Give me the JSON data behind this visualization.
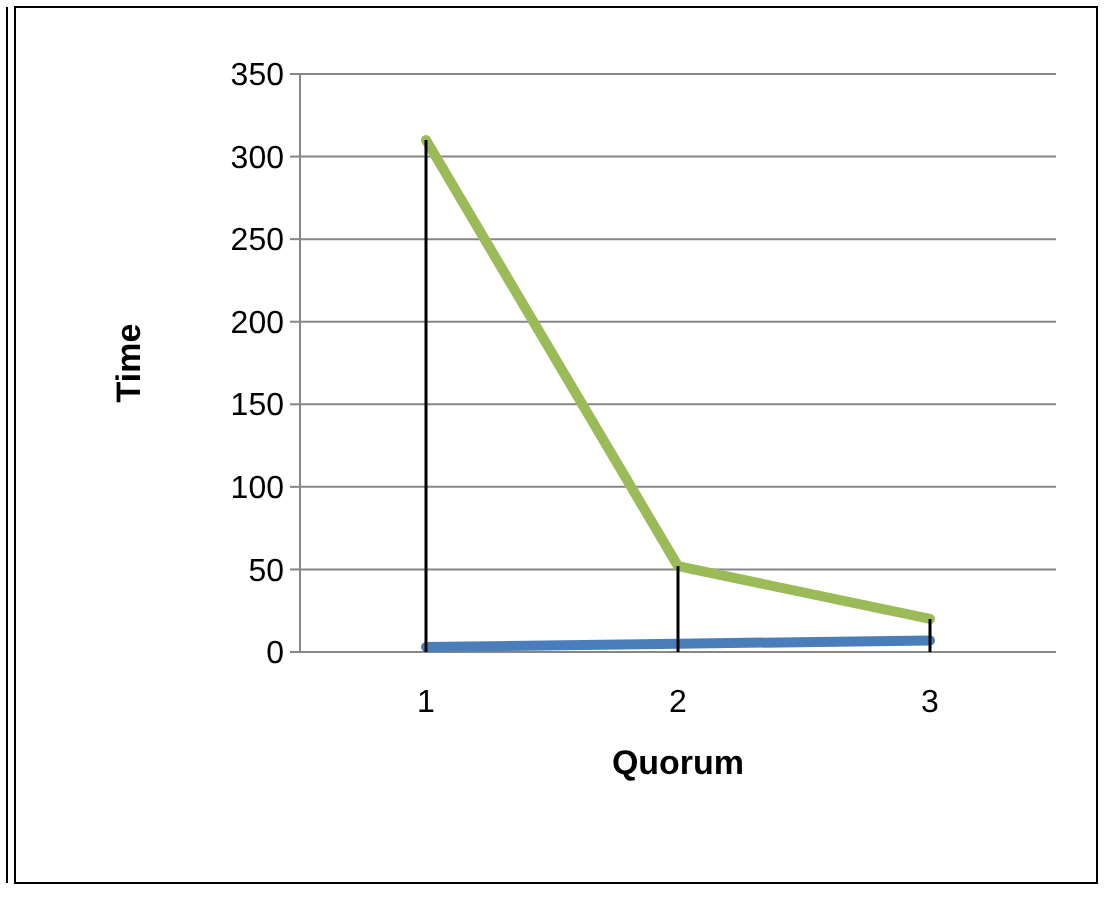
{
  "chart_data": {
    "type": "line",
    "xlabel": "Quorum",
    "ylabel": "Time",
    "categories": [
      "1",
      "2",
      "3"
    ],
    "series": [
      {
        "color": "#4a7ebb",
        "values": [
          3,
          5,
          7
        ],
        "errors": [
          [
            0,
            310
          ],
          [
            0,
            52
          ],
          [
            0,
            20
          ]
        ]
      },
      {
        "color": "#9bbb59",
        "values": [
          310,
          52,
          20
        ]
      }
    ],
    "ylim": [
      0,
      350
    ],
    "yticks": [
      0,
      50,
      100,
      150,
      200,
      250,
      300,
      350
    ],
    "grid": "y",
    "marker": "none"
  }
}
